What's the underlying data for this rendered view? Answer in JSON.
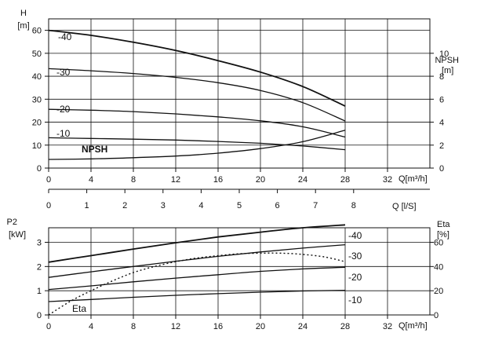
{
  "chart_data": [
    {
      "type": "line",
      "panel": "head",
      "ylabel": "H",
      "yunit": "[m]",
      "xlabel": "Q[m³/h]",
      "xlim": [
        0,
        36
      ],
      "x_ticks": [
        0,
        4,
        8,
        12,
        16,
        20,
        24,
        28,
        32
      ],
      "ylim": [
        0,
        65
      ],
      "y_ticks": [
        0,
        10,
        20,
        30,
        40,
        50,
        60
      ],
      "y2label": "NPSH",
      "y2unit": "[m]",
      "y2lim": [
        0,
        13
      ],
      "y2_ticks": [
        0,
        2,
        4,
        6,
        8,
        10
      ],
      "grid": true,
      "series": [
        {
          "name": "-40",
          "axis": "y",
          "x": [
            0,
            4,
            8,
            12,
            16,
            20,
            24,
            28
          ],
          "y": [
            60,
            57.8,
            54.8,
            51.2,
            46.8,
            41.8,
            35.5,
            27
          ]
        },
        {
          "name": "-30",
          "axis": "y",
          "x": [
            0,
            4,
            8,
            12,
            16,
            20,
            24,
            28
          ],
          "y": [
            43.3,
            42.4,
            41.2,
            39.5,
            37.2,
            33.8,
            28.5,
            20.5
          ]
        },
        {
          "name": "-20",
          "axis": "y",
          "x": [
            0,
            4,
            8,
            12,
            16,
            20,
            24,
            28
          ],
          "y": [
            25.6,
            25.2,
            24.6,
            23.6,
            22.3,
            20.6,
            18,
            13.5
          ]
        },
        {
          "name": "-10",
          "axis": "y",
          "x": [
            0,
            4,
            8,
            12,
            16,
            20,
            24,
            28
          ],
          "y": [
            13.2,
            12.9,
            12.6,
            12.2,
            11.6,
            10.8,
            9.6,
            8
          ]
        },
        {
          "name": "NPSH",
          "axis": "y2",
          "x": [
            0,
            4,
            8,
            12,
            16,
            20,
            24,
            28
          ],
          "y": [
            0.75,
            0.8,
            0.9,
            1.05,
            1.3,
            1.7,
            2.3,
            3.3
          ]
        }
      ]
    },
    {
      "type": "axis",
      "panel": "flow-l/s",
      "xlabel": "Q [l/S]",
      "xlim": [
        0,
        10
      ],
      "x_ticks": [
        0,
        1,
        2,
        3,
        4,
        5,
        6,
        7,
        8
      ]
    },
    {
      "type": "line",
      "panel": "power",
      "ylabel": "P2",
      "yunit": "[kW]",
      "xlabel": "Q[m³/h]",
      "xlim": [
        0,
        36
      ],
      "x_ticks": [
        0,
        4,
        8,
        12,
        16,
        20,
        24,
        28,
        32
      ],
      "ylim": [
        0,
        3.6
      ],
      "y_ticks": [
        0,
        1,
        2,
        3
      ],
      "y2label": "Eta",
      "y2unit": "[%]",
      "y2lim": [
        0,
        72
      ],
      "y2_ticks": [
        0,
        20,
        40,
        60
      ],
      "grid": true,
      "series": [
        {
          "name": "-40",
          "axis": "y",
          "x": [
            0,
            4,
            8,
            12,
            16,
            20,
            24,
            28
          ],
          "y": [
            2.18,
            2.45,
            2.72,
            2.98,
            3.22,
            3.42,
            3.6,
            3.72
          ]
        },
        {
          "name": "-30",
          "axis": "y",
          "x": [
            0,
            4,
            8,
            12,
            16,
            20,
            24,
            28
          ],
          "y": [
            1.55,
            1.78,
            2.0,
            2.22,
            2.42,
            2.6,
            2.76,
            2.9
          ]
        },
        {
          "name": "-20",
          "axis": "y",
          "x": [
            0,
            4,
            8,
            12,
            16,
            20,
            24,
            28
          ],
          "y": [
            1.05,
            1.2,
            1.37,
            1.52,
            1.66,
            1.8,
            1.9,
            1.97
          ]
        },
        {
          "name": "-10",
          "axis": "y",
          "x": [
            0,
            4,
            8,
            12,
            16,
            20,
            24,
            28
          ],
          "y": [
            0.55,
            0.64,
            0.73,
            0.81,
            0.88,
            0.94,
            0.99,
            1.02
          ]
        },
        {
          "name": "Eta",
          "axis": "y2",
          "style": "dotted",
          "x": [
            0,
            2,
            4,
            6,
            8,
            10,
            12,
            14,
            16,
            18,
            20,
            22,
            24,
            26,
            28
          ],
          "y": [
            0,
            11,
            20,
            28,
            35,
            40,
            44,
            47,
            49,
            50.5,
            51,
            51,
            50,
            48,
            44
          ]
        }
      ]
    }
  ]
}
